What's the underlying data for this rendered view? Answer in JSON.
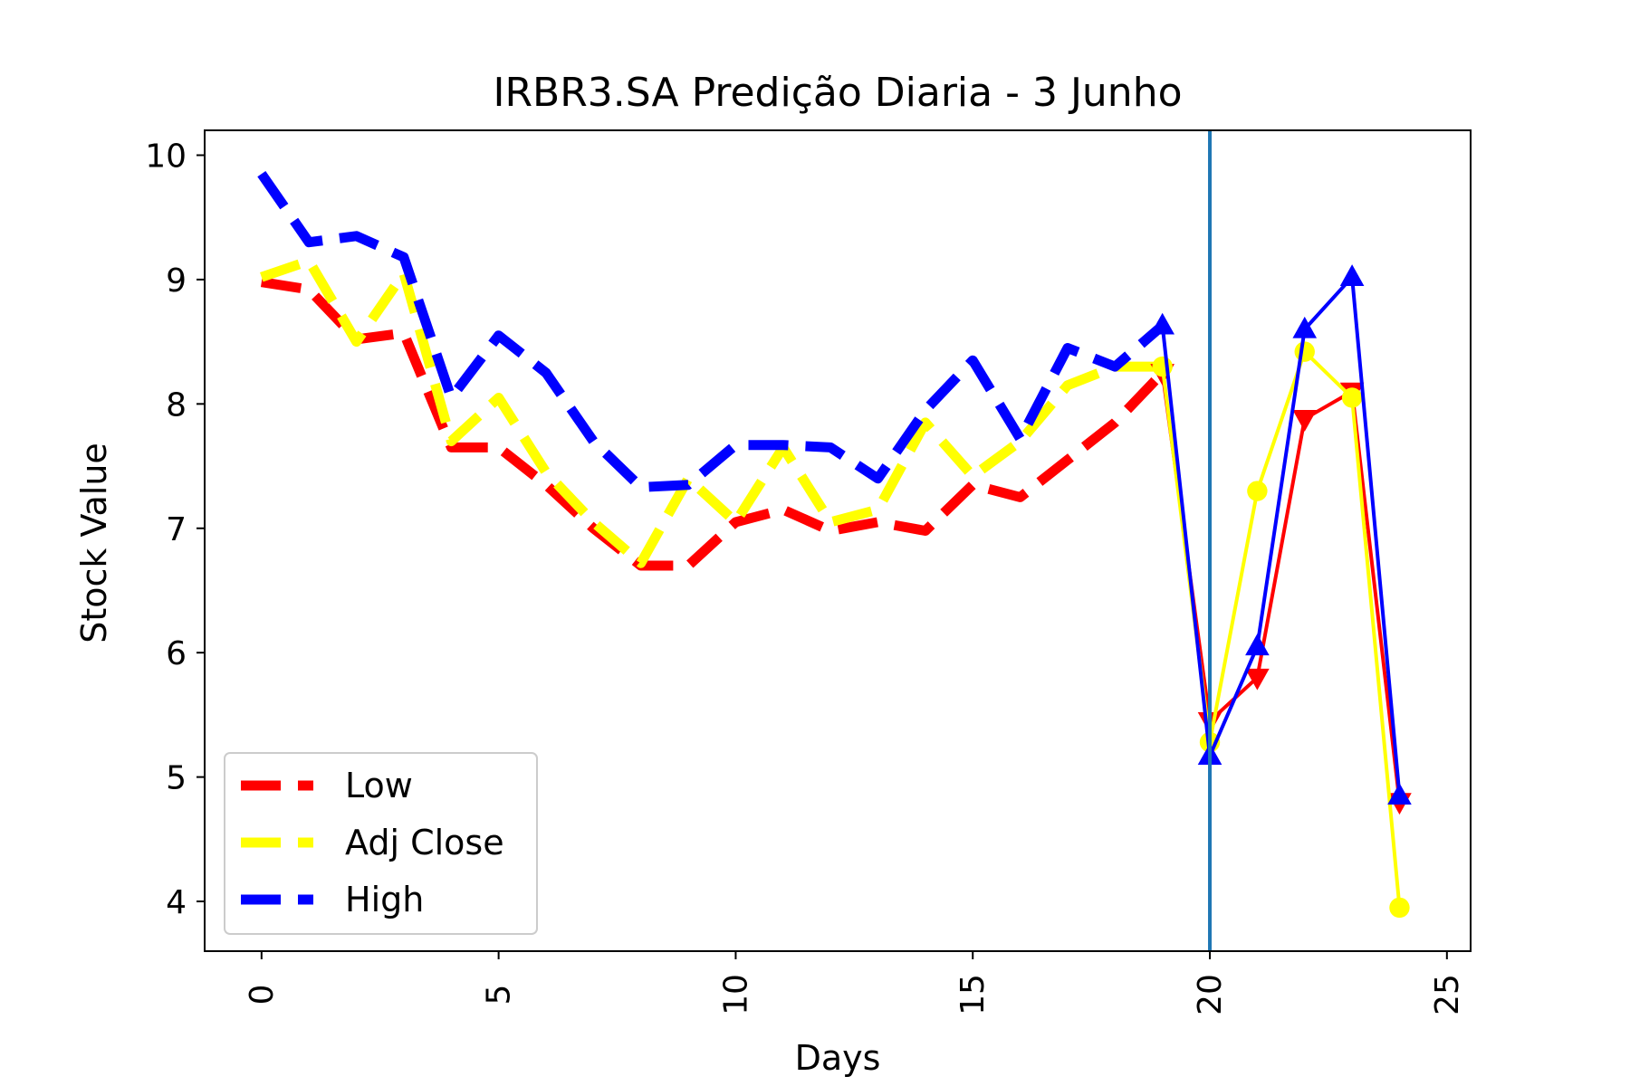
{
  "chart_data": {
    "type": "line",
    "title": "IRBR3.SA Predição Diaria - 3 Junho",
    "xlabel": "Days",
    "ylabel": "Stock Value",
    "xlim": [
      -1.2,
      25.5
    ],
    "ylim": [
      3.6,
      10.2
    ],
    "xticks": [
      0,
      5,
      10,
      15,
      20,
      25
    ],
    "yticks": [
      4,
      5,
      6,
      7,
      8,
      9,
      10
    ],
    "vline_x": 20,
    "vline_color": "#1f77b4",
    "legend_position": "lower-left",
    "grid": false,
    "series": [
      {
        "name": "Low",
        "color": "#ff0000",
        "marker": "triangle-down",
        "history_x": [
          0,
          1,
          2,
          3,
          4,
          5,
          6,
          7,
          8,
          9,
          10,
          11,
          12,
          13,
          14,
          15,
          16,
          17,
          18,
          19
        ],
        "history": [
          8.98,
          8.92,
          8.52,
          8.57,
          7.65,
          7.65,
          7.35,
          7.0,
          6.7,
          6.7,
          7.05,
          7.15,
          6.98,
          7.05,
          6.98,
          7.35,
          7.25,
          7.55,
          7.85,
          8.25
        ],
        "prediction_x": [
          20,
          21,
          22,
          23,
          24
        ],
        "prediction": [
          5.45,
          5.8,
          7.88,
          8.1,
          4.8
        ]
      },
      {
        "name": "Adj Close",
        "color": "#ffff00",
        "marker": "circle",
        "history_x": [
          0,
          1,
          2,
          3,
          4,
          5,
          6,
          7,
          8,
          9,
          10,
          11,
          12,
          13,
          14,
          15,
          16,
          17,
          18,
          19
        ],
        "history": [
          9.02,
          9.15,
          8.5,
          9.05,
          7.7,
          8.05,
          7.45,
          7.05,
          6.72,
          7.4,
          7.05,
          7.65,
          7.05,
          7.15,
          7.85,
          7.42,
          7.7,
          8.15,
          8.3,
          8.3
        ],
        "prediction_x": [
          20,
          21,
          22,
          23,
          24
        ],
        "prediction": [
          5.28,
          7.3,
          8.42,
          8.05,
          3.95
        ]
      },
      {
        "name": "High",
        "color": "#0000ff",
        "marker": "triangle-up",
        "history_x": [
          0,
          1,
          2,
          3,
          4,
          5,
          6,
          7,
          8,
          9,
          10,
          11,
          12,
          13,
          14,
          15,
          16,
          17,
          18,
          19
        ],
        "history": [
          9.85,
          9.3,
          9.35,
          9.18,
          8.05,
          8.55,
          8.25,
          7.7,
          7.33,
          7.35,
          7.67,
          7.67,
          7.65,
          7.4,
          7.95,
          8.35,
          7.72,
          8.45,
          8.3,
          8.63
        ],
        "prediction_x": [
          20,
          21,
          22,
          23,
          24
        ],
        "prediction": [
          5.17,
          6.05,
          8.6,
          9.02,
          4.85
        ]
      }
    ]
  }
}
